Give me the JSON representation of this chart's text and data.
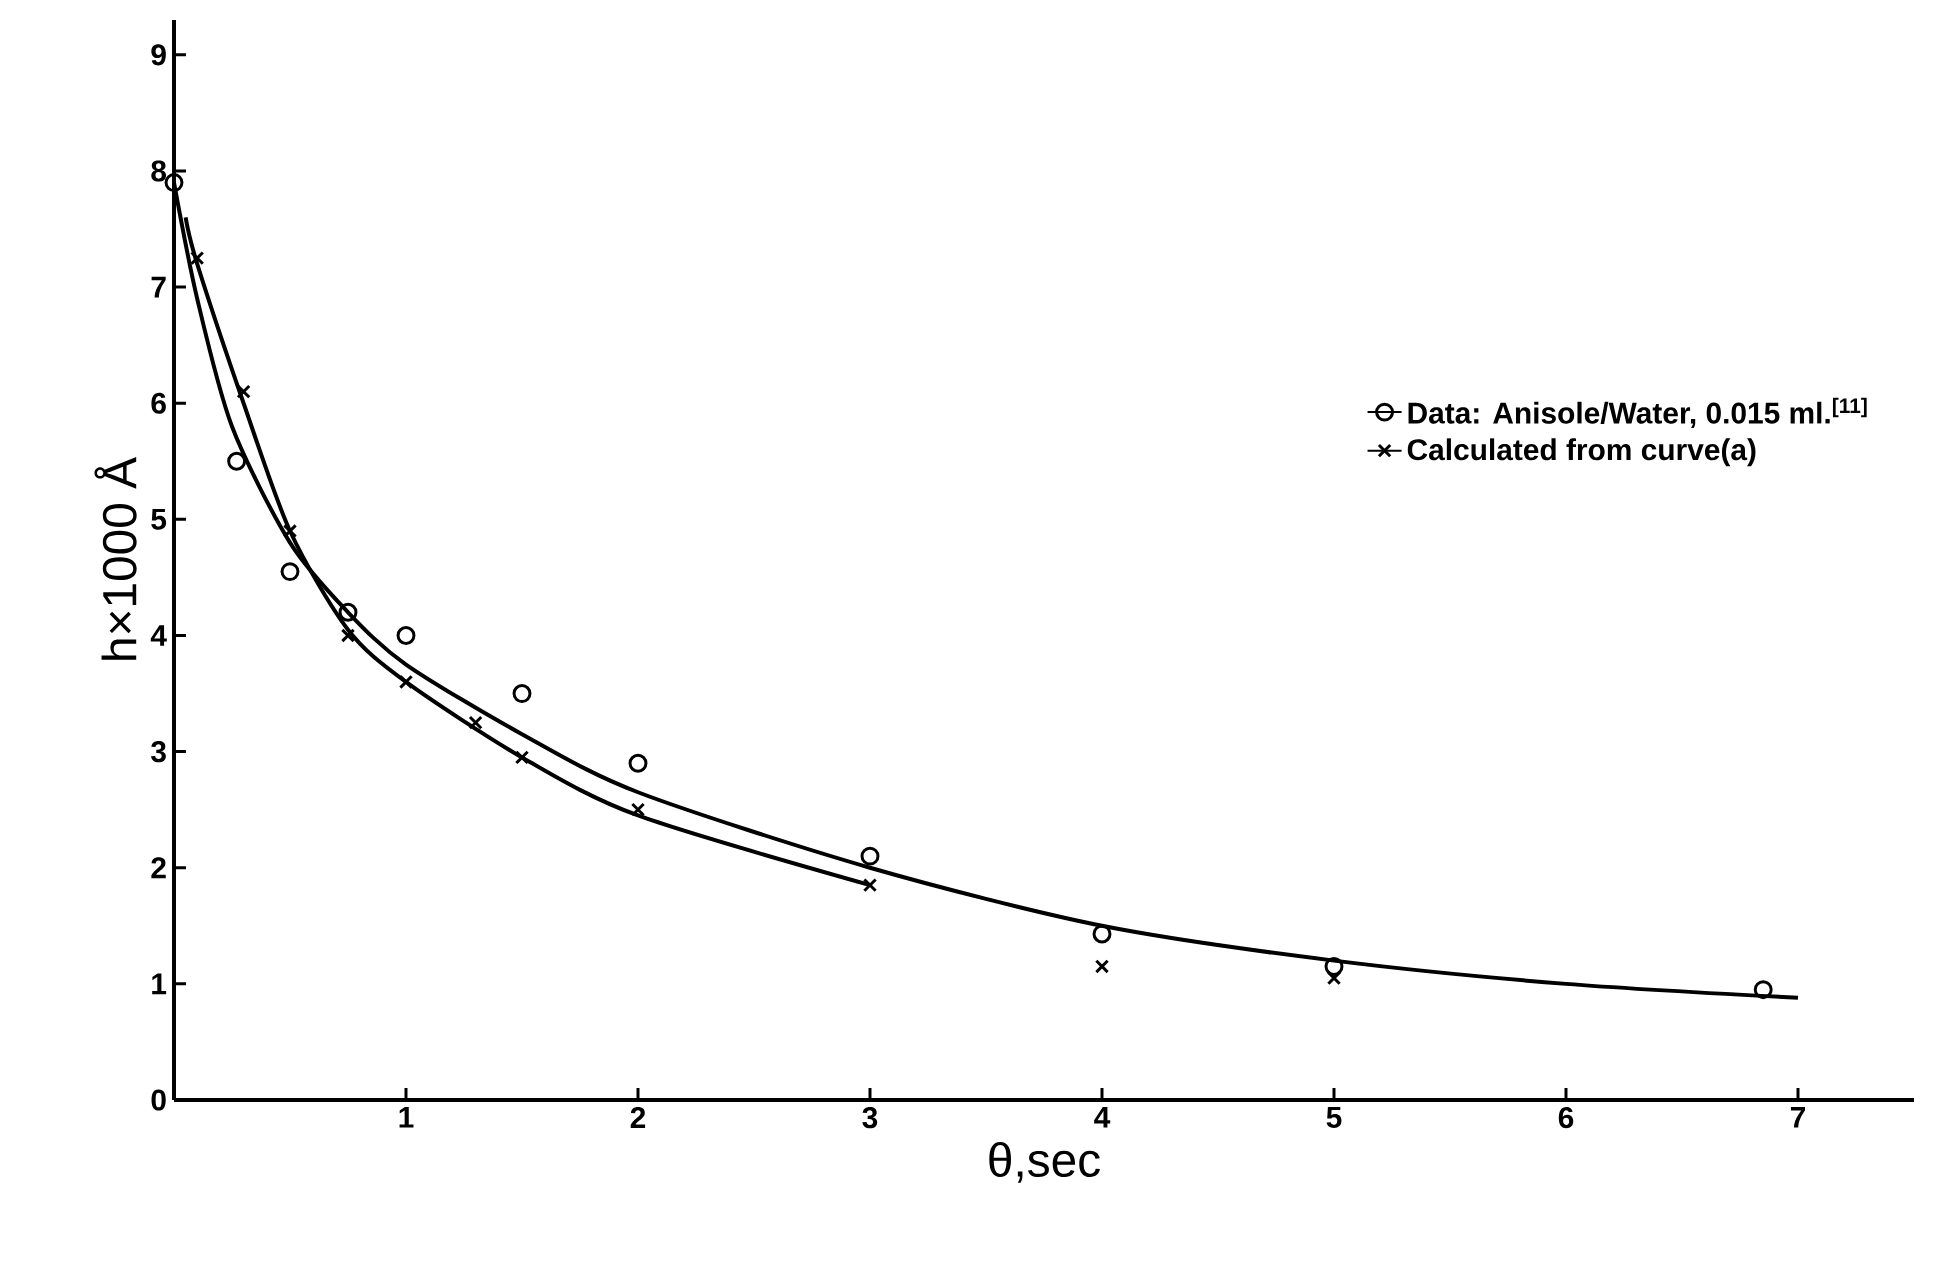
{
  "chart_data": {
    "type": "scatter",
    "xlabel": "θ,sec",
    "ylabel": "h×1000 Å",
    "xlim": [
      0,
      7.5
    ],
    "ylim": [
      0,
      9.3
    ],
    "xticks": [
      1,
      2,
      3,
      4,
      5,
      6,
      7
    ],
    "yticks": [
      0,
      1,
      2,
      3,
      4,
      5,
      6,
      7,
      8,
      9
    ],
    "grid": false,
    "legend": "right",
    "series": [
      {
        "name": "Data: Anisole/Water, 0.015 ml.$^{[11]}$",
        "marker": "circle",
        "color": "#000000",
        "x": [
          0,
          0.27,
          0.5,
          0.75,
          1.0,
          1.5,
          2.0,
          3.0,
          4.0,
          5.0,
          6.85
        ],
        "values": [
          7.9,
          5.5,
          4.55,
          4.2,
          4.0,
          3.5,
          2.9,
          2.1,
          1.43,
          1.15,
          0.95
        ]
      },
      {
        "name": "Calculated from curve(a)",
        "marker": "cross",
        "color": "#000000",
        "x": [
          0.1,
          0.3,
          0.5,
          0.75,
          1.0,
          1.3,
          1.5,
          2.0,
          3.0,
          4.0,
          5.0
        ],
        "values": [
          7.25,
          6.1,
          4.9,
          4.0,
          3.6,
          3.25,
          2.95,
          2.5,
          1.85,
          1.15,
          1.05
        ]
      },
      {
        "type": "line",
        "marker": "none",
        "line_style": "solid",
        "color": "#000000",
        "x": [
          0,
          0.1,
          0.25,
          0.5,
          0.75,
          1.0,
          1.5,
          2.0,
          3.0,
          4.0,
          5.0,
          6.0,
          7.0
        ],
        "values": [
          7.9,
          6.9,
          5.8,
          4.8,
          4.2,
          3.75,
          3.15,
          2.65,
          2.0,
          1.5,
          1.2,
          1.0,
          0.88
        ]
      },
      {
        "type": "line",
        "marker": "none",
        "line_style": "solid",
        "color": "#000000",
        "x": [
          0.05,
          0.1,
          0.3,
          0.5,
          0.75,
          1.0,
          1.5,
          2.0,
          3.0
        ],
        "values": [
          7.6,
          7.2,
          6.0,
          4.9,
          4.05,
          3.6,
          2.95,
          2.45,
          1.85
        ]
      }
    ]
  }
}
